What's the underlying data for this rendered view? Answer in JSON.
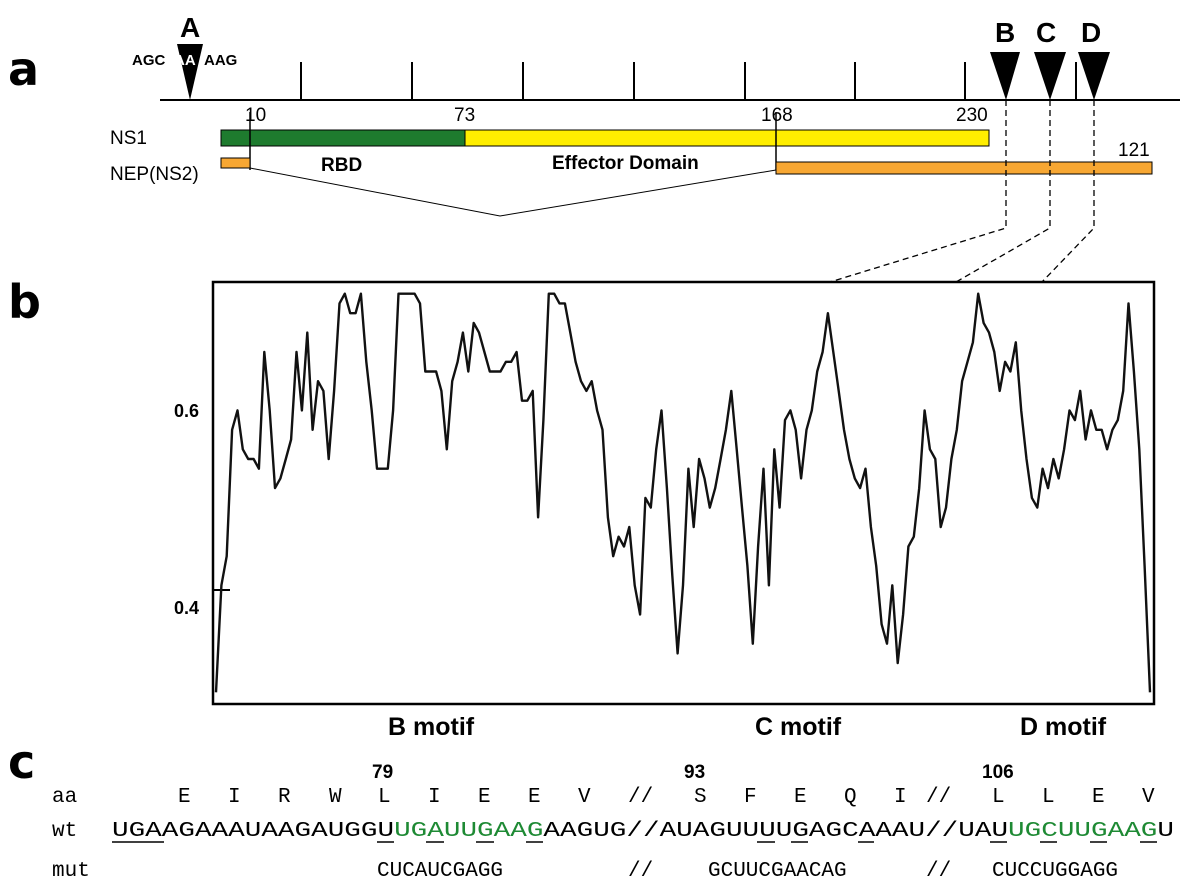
{
  "panel_a": {
    "letter": "a",
    "marker_A": "A",
    "marker_B": "B",
    "marker_C": "C",
    "marker_D": "D",
    "splice_seq_pre": "AGC",
    "splice_seq_mid": "AA",
    "splice_seq_post": "AAG",
    "ns1_label": "NS1",
    "nep_label": "NEP(NS2)",
    "pos_10": "10",
    "pos_73": "73",
    "pos_168": "168",
    "pos_230": "230",
    "pos_121": "121",
    "rbd_label": "RBD",
    "effector_label": "Effector Domain",
    "colors": {
      "ns1_rbd": "#1e7b2e",
      "ns1_effector": "#ffee00",
      "nep": "#f7a733"
    }
  },
  "panel_b": {
    "letter": "b",
    "y_tick_06": "0.6",
    "y_tick_04": "0.4",
    "b_motif": "B motif",
    "c_motif": "C motif",
    "d_motif": "D motif"
  },
  "panel_c": {
    "letter": "c",
    "num_79": "79",
    "num_93": "93",
    "num_106": "106",
    "aa_label": "aa",
    "aa_1": "E",
    "aa_2": "I",
    "aa_3": "R",
    "aa_4": "W",
    "aa_5": "L",
    "aa_6": "I",
    "aa_7": "E",
    "aa_8": "E",
    "aa_9": "V",
    "aa_sep1": "//",
    "aa_10": "S",
    "aa_11": "F",
    "aa_12": "E",
    "aa_13": "Q",
    "aa_14": "I",
    "aa_sep2": "//",
    "aa_15": "L",
    "aa_16": "L",
    "aa_17": "E",
    "aa_18": "V",
    "wt_label": "wt",
    "wt_part1": "UGAAGAAAUAAGAUGGU",
    "wt_part2": "UGAUUGAAG",
    "wt_part3": "AAGUG//AUAGUUUUGAGCAAAU//UAU",
    "wt_part4": "UGCUUGAAG",
    "wt_part5": "U",
    "mut_label": "mut",
    "mut_1": "CUCAUCGAGG",
    "mut_sep1": "//",
    "mut_2": "GCUUCGAACAG",
    "mut_sep2": "//",
    "mut_3": "CUCCUGGAGG",
    "highlight_color": "#1e8a34"
  },
  "chart_data": {
    "type": "line",
    "title": "",
    "xlabel": "",
    "ylabel": "",
    "yticks": [
      0.4,
      0.6
    ],
    "ylim": [
      0.3,
      0.73
    ],
    "annotations": [
      "B motif",
      "C motif",
      "D motif"
    ],
    "series": [
      {
        "values": [
          0.31,
          0.42,
          0.45,
          0.58,
          0.6,
          0.56,
          0.55,
          0.55,
          0.54,
          0.66,
          0.6,
          0.52,
          0.53,
          0.55,
          0.57,
          0.66,
          0.6,
          0.68,
          0.58,
          0.63,
          0.62,
          0.55,
          0.62,
          0.71,
          0.72,
          0.7,
          0.7,
          0.72,
          0.65,
          0.6,
          0.54,
          0.54,
          0.54,
          0.6,
          0.72,
          0.72,
          0.72,
          0.72,
          0.71,
          0.64,
          0.64,
          0.64,
          0.62,
          0.56,
          0.63,
          0.65,
          0.68,
          0.64,
          0.69,
          0.68,
          0.66,
          0.64,
          0.64,
          0.64,
          0.65,
          0.65,
          0.66,
          0.61,
          0.61,
          0.62,
          0.49,
          0.59,
          0.72,
          0.72,
          0.71,
          0.71,
          0.68,
          0.65,
          0.63,
          0.62,
          0.63,
          0.6,
          0.58,
          0.49,
          0.45,
          0.47,
          0.46,
          0.48,
          0.42,
          0.39,
          0.51,
          0.5,
          0.56,
          0.6,
          0.52,
          0.43,
          0.35,
          0.42,
          0.54,
          0.48,
          0.55,
          0.53,
          0.5,
          0.52,
          0.55,
          0.58,
          0.62,
          0.56,
          0.5,
          0.44,
          0.36,
          0.46,
          0.54,
          0.42,
          0.56,
          0.5,
          0.59,
          0.6,
          0.58,
          0.53,
          0.58,
          0.6,
          0.64,
          0.66,
          0.7,
          0.66,
          0.62,
          0.58,
          0.55,
          0.53,
          0.52,
          0.54,
          0.48,
          0.44,
          0.38,
          0.36,
          0.42,
          0.34,
          0.39,
          0.46,
          0.47,
          0.52,
          0.6,
          0.56,
          0.55,
          0.48,
          0.5,
          0.55,
          0.58,
          0.63,
          0.65,
          0.67,
          0.72,
          0.69,
          0.68,
          0.66,
          0.62,
          0.65,
          0.64,
          0.67,
          0.6,
          0.55,
          0.51,
          0.5,
          0.54,
          0.52,
          0.55,
          0.53,
          0.56,
          0.6,
          0.59,
          0.62,
          0.57,
          0.6,
          0.58,
          0.58,
          0.56,
          0.58,
          0.59,
          0.62,
          0.71,
          0.64,
          0.56,
          0.44,
          0.31
        ]
      }
    ]
  }
}
